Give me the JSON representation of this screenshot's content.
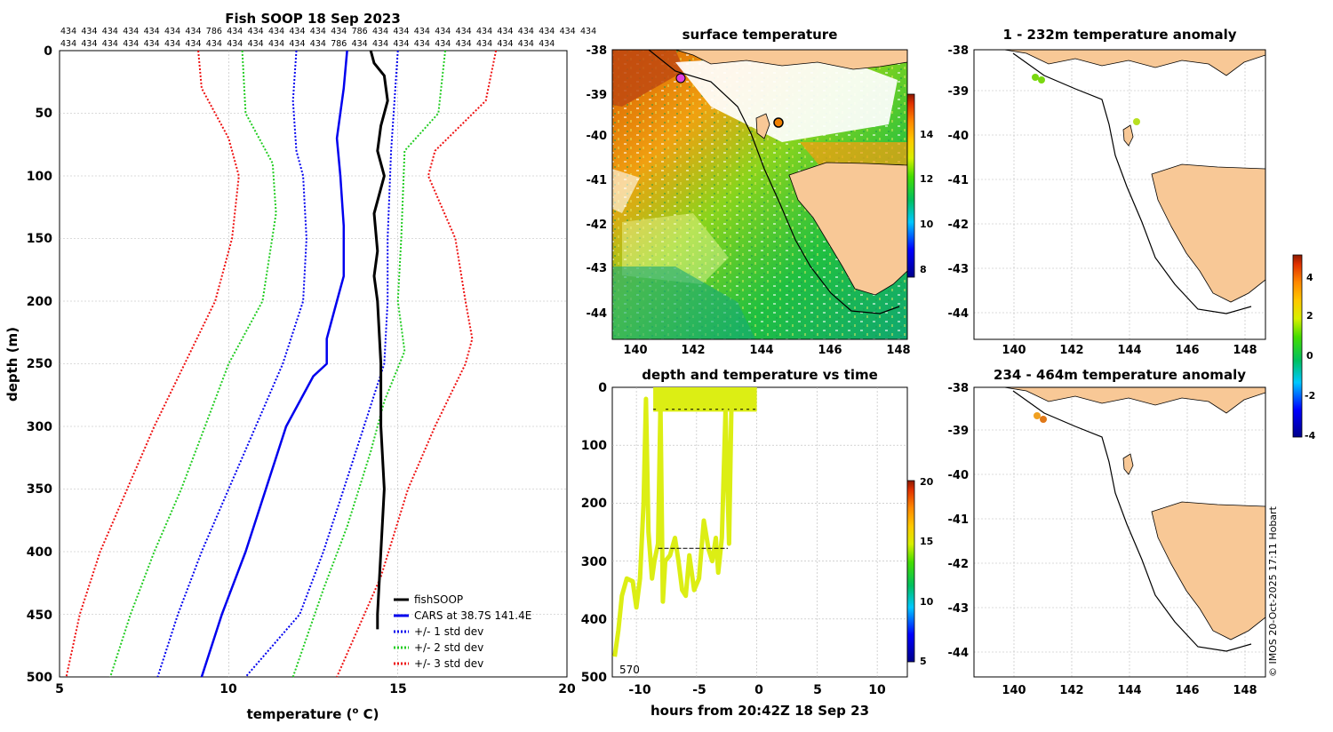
{
  "colors": {
    "fish": "#000000",
    "cars": "#0000ee",
    "std1": "#0000ee",
    "std2": "#22cc22",
    "std3": "#ee1111",
    "land": "#f8c896",
    "coast": "#000000",
    "grid": "#b8b8b8"
  },
  "ids": {
    "row1": [
      "434",
      "434",
      "434",
      "434",
      "434",
      "434",
      "434",
      "786",
      "434",
      "434",
      "434",
      "434",
      "434",
      "434",
      "786",
      "434",
      "434",
      "434",
      "434",
      "434",
      "434",
      "434",
      "434",
      "434",
      "434",
      "434"
    ],
    "row2": [
      "434",
      "434",
      "434",
      "434",
      "434",
      "434",
      "434",
      "434",
      "434",
      "434",
      "434",
      "434",
      "434",
      "786",
      "434",
      "434",
      "434",
      "434",
      "434",
      "434",
      "434",
      "434",
      "434",
      "434"
    ]
  },
  "profile": {
    "title": "Fish SOOP 18 Sep 2023",
    "xlabel": "temperature (",
    "xlabel_sup": "o",
    "xlabel_unit": " C)",
    "ylabel": "depth (m)",
    "xticks": [
      "5",
      "10",
      "15",
      "20"
    ],
    "yticks": [
      "0",
      "50",
      "100",
      "150",
      "200",
      "250",
      "300",
      "350",
      "400",
      "450",
      "500"
    ],
    "legend": [
      "fishSOOP",
      "CARS at 38.7S 141.4E",
      "+/- 1 std dev",
      "+/- 2 std dev",
      "+/- 3 std dev"
    ]
  },
  "sst_map": {
    "title": "surface temperature",
    "lat_ticks": [
      "-38",
      "-39",
      "-40",
      "-41",
      "-42",
      "-43",
      "-44"
    ],
    "lon_ticks": [
      "140",
      "142",
      "144",
      "146",
      "148"
    ],
    "cbar_ticks": [
      "14",
      "12",
      "10",
      "8"
    ]
  },
  "time_plot": {
    "title": "depth and temperature vs time",
    "xlabel": "hours from 20:42Z 18 Sep 23",
    "xticks": [
      "-10",
      "-5",
      "0",
      "5",
      "10"
    ],
    "yticks": [
      "0",
      "100",
      "200",
      "300",
      "400",
      "500"
    ],
    "note": "570",
    "cbar_ticks": [
      "20",
      "15",
      "10",
      "5"
    ]
  },
  "anom1": {
    "title": "1 - 232m temperature anomaly",
    "lat_ticks": [
      "-38",
      "-39",
      "-40",
      "-41",
      "-42",
      "-43",
      "-44"
    ],
    "lon_ticks": [
      "140",
      "142",
      "144",
      "146",
      "148"
    ]
  },
  "anom2": {
    "title": "234 - 464m temperature anomaly",
    "lat_ticks": [
      "-38",
      "-39",
      "-40",
      "-41",
      "-42",
      "-43",
      "-44"
    ],
    "lon_ticks": [
      "140",
      "142",
      "144",
      "146",
      "148"
    ]
  },
  "anom_cbar": {
    "ticks": [
      "4",
      "2",
      "0",
      "-2",
      "-4"
    ]
  },
  "credit": "© IMOS 20-Oct-2025 17:11 Hobart",
  "chart_data": [
    {
      "type": "line",
      "title": "Fish SOOP 18 Sep 2023",
      "xlabel": "temperature (o C)",
      "ylabel": "depth (m)",
      "xlim": [
        5,
        20
      ],
      "ylim": [
        500,
        0
      ],
      "series": [
        {
          "name": "fishSOOP",
          "points": [
            [
              14.2,
              0
            ],
            [
              14.3,
              10
            ],
            [
              14.6,
              20
            ],
            [
              14.7,
              40
            ],
            [
              14.5,
              60
            ],
            [
              14.4,
              80
            ],
            [
              14.6,
              100
            ],
            [
              14.3,
              130
            ],
            [
              14.4,
              160
            ],
            [
              14.3,
              180
            ],
            [
              14.4,
              200
            ],
            [
              14.5,
              250
            ],
            [
              14.5,
              300
            ],
            [
              14.6,
              350
            ],
            [
              14.5,
              400
            ],
            [
              14.4,
              450
            ],
            [
              14.4,
              462
            ]
          ]
        },
        {
          "name": "CARS at 38.7S 141.4E",
          "points": [
            [
              13.5,
              0
            ],
            [
              13.4,
              30
            ],
            [
              13.2,
              70
            ],
            [
              13.3,
              100
            ],
            [
              13.4,
              140
            ],
            [
              13.4,
              180
            ],
            [
              13.2,
              200
            ],
            [
              12.9,
              230
            ],
            [
              12.9,
              250
            ],
            [
              12.5,
              260
            ],
            [
              11.7,
              300
            ],
            [
              11.1,
              350
            ],
            [
              10.5,
              400
            ],
            [
              9.8,
              450
            ],
            [
              9.2,
              500
            ]
          ]
        },
        {
          "name": "CARS - 1 std dev",
          "points": [
            [
              12.0,
              0
            ],
            [
              11.9,
              40
            ],
            [
              12.0,
              80
            ],
            [
              12.2,
              100
            ],
            [
              12.3,
              150
            ],
            [
              12.2,
              200
            ],
            [
              11.6,
              250
            ],
            [
              10.8,
              300
            ],
            [
              10.0,
              350
            ],
            [
              9.2,
              400
            ],
            [
              8.5,
              450
            ],
            [
              7.9,
              500
            ]
          ]
        },
        {
          "name": "CARS + 1 std dev",
          "points": [
            [
              15.0,
              0
            ],
            [
              14.9,
              40
            ],
            [
              14.8,
              80
            ],
            [
              14.7,
              150
            ],
            [
              14.7,
              200
            ],
            [
              14.6,
              250
            ],
            [
              14.0,
              300
            ],
            [
              13.4,
              350
            ],
            [
              12.8,
              400
            ],
            [
              12.1,
              450
            ],
            [
              10.5,
              500
            ]
          ]
        },
        {
          "name": "CARS - 2 std dev",
          "points": [
            [
              10.4,
              0
            ],
            [
              10.5,
              50
            ],
            [
              11.3,
              90
            ],
            [
              11.4,
              130
            ],
            [
              11.0,
              200
            ],
            [
              10.0,
              250
            ],
            [
              9.3,
              300
            ],
            [
              8.6,
              350
            ],
            [
              7.8,
              400
            ],
            [
              7.1,
              450
            ],
            [
              6.5,
              500
            ]
          ]
        },
        {
          "name": "CARS + 2 std dev",
          "points": [
            [
              16.4,
              0
            ],
            [
              16.2,
              50
            ],
            [
              15.2,
              80
            ],
            [
              15.1,
              150
            ],
            [
              15.0,
              200
            ],
            [
              15.2,
              240
            ],
            [
              14.6,
              280
            ],
            [
              14.2,
              320
            ],
            [
              13.5,
              380
            ],
            [
              12.8,
              430
            ],
            [
              11.9,
              500
            ]
          ]
        },
        {
          "name": "CARS - 3 std dev",
          "points": [
            [
              9.1,
              0
            ],
            [
              9.2,
              30
            ],
            [
              10.0,
              70
            ],
            [
              10.3,
              100
            ],
            [
              10.1,
              150
            ],
            [
              9.6,
              200
            ],
            [
              8.7,
              250
            ],
            [
              7.8,
              300
            ],
            [
              7.0,
              350
            ],
            [
              6.2,
              400
            ],
            [
              5.6,
              450
            ],
            [
              5.2,
              500
            ]
          ]
        },
        {
          "name": "CARS + 3 std dev",
          "points": [
            [
              17.9,
              0
            ],
            [
              17.6,
              40
            ],
            [
              16.1,
              80
            ],
            [
              15.9,
              100
            ],
            [
              16.7,
              150
            ],
            [
              17.0,
              200
            ],
            [
              17.2,
              230
            ],
            [
              17.0,
              250
            ],
            [
              16.1,
              300
            ],
            [
              15.3,
              350
            ],
            [
              14.5,
              420
            ],
            [
              13.2,
              500
            ]
          ]
        }
      ]
    },
    {
      "type": "line",
      "title": "depth and temperature vs time",
      "xlabel": "hours from 20:42Z 18 Sep 23",
      "ylabel": "",
      "xlim": [
        -12,
        12.5
      ],
      "ylim": [
        500,
        0
      ],
      "series": [
        {
          "name": "depth",
          "points": [
            [
              -11.8,
              465
            ],
            [
              -11.5,
              420
            ],
            [
              -11.2,
              360
            ],
            [
              -10.8,
              330
            ],
            [
              -10.3,
              335
            ],
            [
              -10.0,
              380
            ],
            [
              -9.7,
              330
            ],
            [
              -9.4,
              200
            ],
            [
              -9.2,
              20
            ],
            [
              -9.0,
              250
            ],
            [
              -8.7,
              330
            ],
            [
              -8.5,
              300
            ],
            [
              -8.2,
              270
            ],
            [
              -8.0,
              30
            ],
            [
              -7.8,
              370
            ],
            [
              -7.6,
              300
            ],
            [
              -7.2,
              290
            ],
            [
              -6.8,
              260
            ],
            [
              -6.5,
              300
            ],
            [
              -6.2,
              350
            ],
            [
              -5.9,
              360
            ],
            [
              -5.6,
              290
            ],
            [
              -5.2,
              350
            ],
            [
              -4.8,
              330
            ],
            [
              -4.4,
              230
            ],
            [
              -4.0,
              280
            ],
            [
              -3.7,
              300
            ],
            [
              -3.4,
              260
            ],
            [
              -3.2,
              320
            ],
            [
              -2.9,
              260
            ],
            [
              -2.6,
              40
            ],
            [
              -2.3,
              270
            ],
            [
              -2.1,
              20
            ],
            [
              -1.5,
              0
            ],
            [
              0,
              0
            ]
          ]
        }
      ],
      "note": "570"
    }
  ]
}
